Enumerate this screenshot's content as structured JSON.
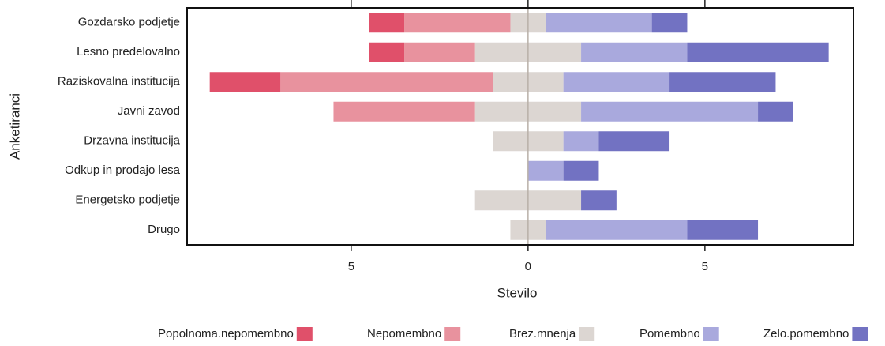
{
  "chart_data": {
    "type": "diverging_bar",
    "x_label": "Stevilo",
    "y_label": "Anketiranci",
    "categories": [
      "Gozdarsko podjetje",
      "Lesno predelovalno",
      "Raziskovalna institucija",
      "Javni zavod",
      "Drzavna  institucija",
      "Odkup in prodajo lesa",
      "Energetsko podjetje",
      "Drugo"
    ],
    "series": [
      {
        "name": "Popolnoma.nepomembno",
        "color": "#e0506a",
        "side": "negative",
        "values": [
          1,
          1,
          2,
          0,
          0,
          0,
          0,
          0
        ]
      },
      {
        "name": "Nepomembno",
        "color": "#e8929e",
        "side": "negative",
        "values": [
          3,
          2,
          6,
          4,
          0,
          0,
          0,
          0
        ]
      },
      {
        "name": "Brez.mnenja",
        "color": "#dcd6d2",
        "side": "neutral",
        "values": [
          1,
          3,
          2,
          3,
          2,
          0,
          3,
          1
        ]
      },
      {
        "name": "Pomembno",
        "color": "#a9a9dd",
        "side": "positive",
        "values": [
          3,
          3,
          3,
          5,
          1,
          1,
          0,
          4
        ]
      },
      {
        "name": "Zelo.pomembno",
        "color": "#7272c2",
        "side": "positive",
        "values": [
          1,
          4,
          3,
          1,
          2,
          1,
          1,
          2
        ]
      }
    ],
    "xlim": [
      -9.64,
      9.2
    ],
    "xticks": [
      {
        "value": -5,
        "label": "5"
      },
      0,
      5
    ],
    "legend": "bottom"
  }
}
